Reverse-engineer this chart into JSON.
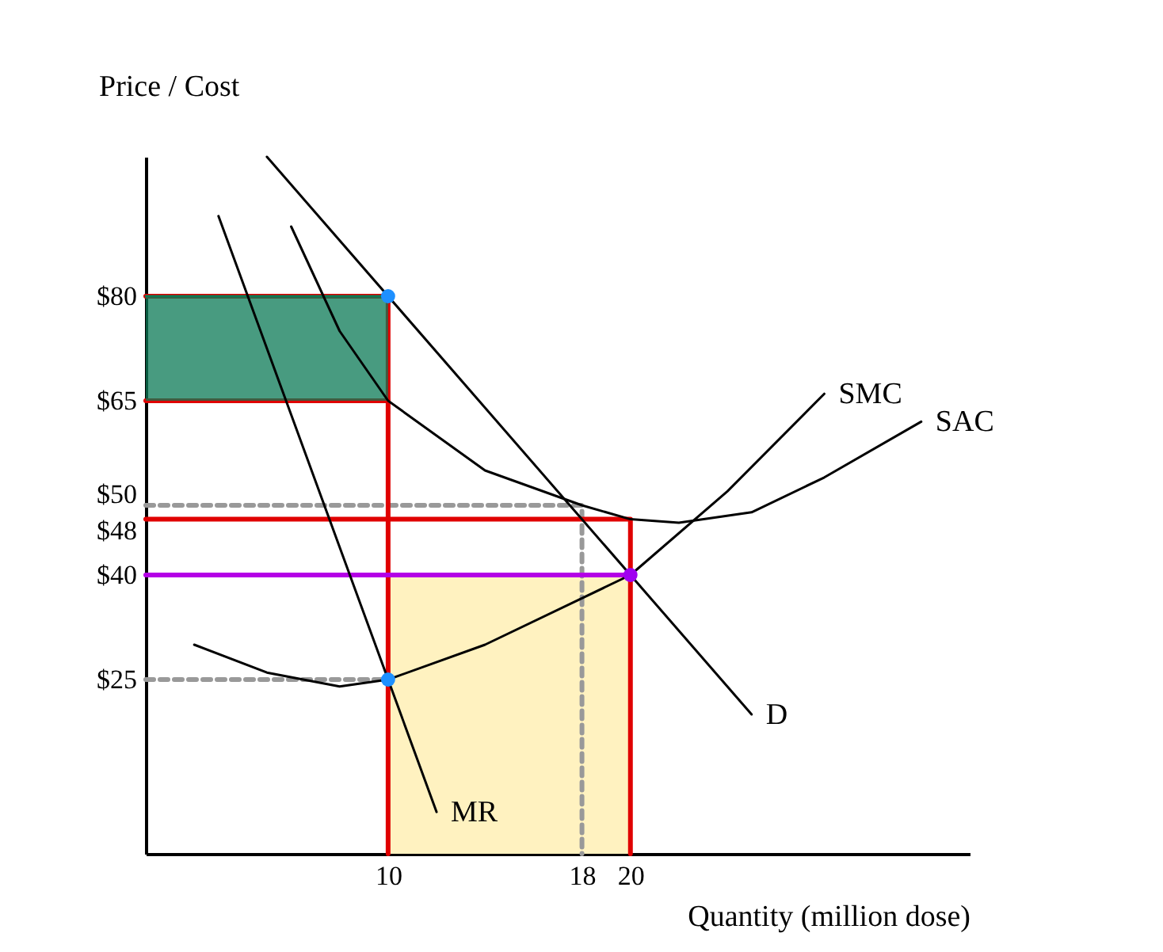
{
  "chart_data": {
    "type": "line",
    "xlabel": "Quantity (million dose)",
    "ylabel": "Price / Cost",
    "xlim": [
      0,
      34
    ],
    "ylim": [
      0,
      100
    ],
    "xticks": [
      10,
      18,
      20
    ],
    "yticks": [
      {
        "value": 80,
        "label": "$80"
      },
      {
        "value": 65,
        "label": "$65"
      },
      {
        "value": 50,
        "label": "$50"
      },
      {
        "value": 48,
        "label": "$48"
      },
      {
        "value": 40,
        "label": "$40"
      },
      {
        "value": 25,
        "label": "$25"
      }
    ],
    "grid": false,
    "marker": "none",
    "series": [
      {
        "type": "area",
        "color": "#fff2c0",
        "x": [
          10,
          20
        ],
        "values": [
          40,
          40
        ]
      },
      {
        "color": "#999999",
        "line_style": "dashed",
        "x": [
          0,
          10
        ],
        "values": [
          25,
          25
        ]
      },
      {
        "color": "#999999",
        "line_style": "dashed",
        "x": [
          0,
          18,
          18
        ],
        "values": [
          50,
          50,
          0
        ]
      },
      {
        "color": "#e00000",
        "x": [
          0,
          10,
          10
        ],
        "values": [
          80,
          80,
          0
        ]
      },
      {
        "color": "#e00000",
        "x": [
          0,
          10
        ],
        "values": [
          65,
          65
        ]
      },
      {
        "color": "#0b7a55",
        "x": [
          0,
          10
        ],
        "values": [
          80,
          80
        ],
        "lower": [
          65,
          65
        ],
        "upper": [
          80,
          80
        ]
      },
      {
        "color": "#e00000",
        "x": [
          0,
          20,
          20
        ],
        "values": [
          48,
          48,
          0
        ]
      },
      {
        "color": "#b400e6",
        "x": [
          0,
          20
        ],
        "values": [
          40,
          40
        ]
      },
      {
        "name": "D",
        "color": "#000000",
        "x": [
          5,
          25
        ],
        "values": [
          100,
          20
        ]
      },
      {
        "name": "MR",
        "color": "#000000",
        "x": [
          3,
          12
        ],
        "values": [
          91.5,
          6
        ]
      },
      {
        "name": "SMC",
        "color": "#000000",
        "x": [
          2,
          5,
          8,
          10,
          14,
          20,
          24,
          28
        ],
        "values": [
          30,
          26,
          24,
          25,
          30,
          40,
          52,
          66
        ]
      },
      {
        "name": "SAC",
        "color": "#000000",
        "x": [
          6,
          8,
          10,
          14,
          18,
          20,
          22,
          25,
          28,
          32
        ],
        "values": [
          90,
          75,
          65,
          55,
          50,
          48,
          47.5,
          49,
          54,
          62
        ]
      },
      {
        "type": "scatter",
        "marker": "circle",
        "color": "#1e90ff",
        "x": [
          10,
          10
        ],
        "values": [
          80,
          25
        ]
      },
      {
        "type": "scatter",
        "marker": "circle",
        "color": "#a000f0",
        "x": [
          20
        ],
        "values": [
          40
        ]
      }
    ]
  }
}
